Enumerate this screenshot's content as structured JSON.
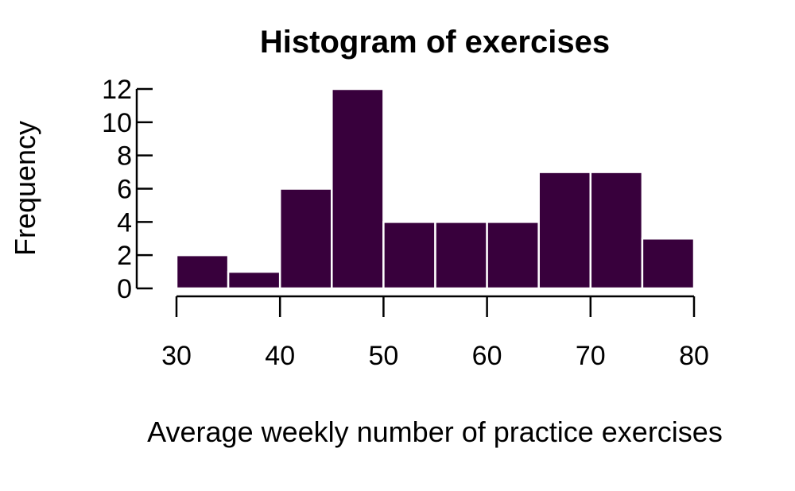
{
  "chart_data": {
    "type": "bar",
    "title": "Histogram of exercises",
    "xlabel": "Average weekly number of practice exercises",
    "ylabel": "Frequency",
    "bins": [
      {
        "start": 30,
        "end": 35,
        "count": 2
      },
      {
        "start": 35,
        "end": 40,
        "count": 1
      },
      {
        "start": 40,
        "end": 45,
        "count": 6
      },
      {
        "start": 45,
        "end": 50,
        "count": 12
      },
      {
        "start": 50,
        "end": 55,
        "count": 4
      },
      {
        "start": 55,
        "end": 60,
        "count": 4
      },
      {
        "start": 60,
        "end": 65,
        "count": 4
      },
      {
        "start": 65,
        "end": 70,
        "count": 7
      },
      {
        "start": 70,
        "end": 75,
        "count": 7
      },
      {
        "start": 75,
        "end": 80,
        "count": 3
      }
    ],
    "xlim": [
      30,
      80
    ],
    "ylim": [
      0,
      12
    ],
    "xticks": [
      30,
      40,
      50,
      60,
      70,
      80
    ],
    "yticks": [
      0,
      2,
      4,
      6,
      8,
      10,
      12
    ],
    "bar_color": "#38003c",
    "bar_border_color": "#ffffff",
    "grid": false,
    "legend": "none"
  }
}
